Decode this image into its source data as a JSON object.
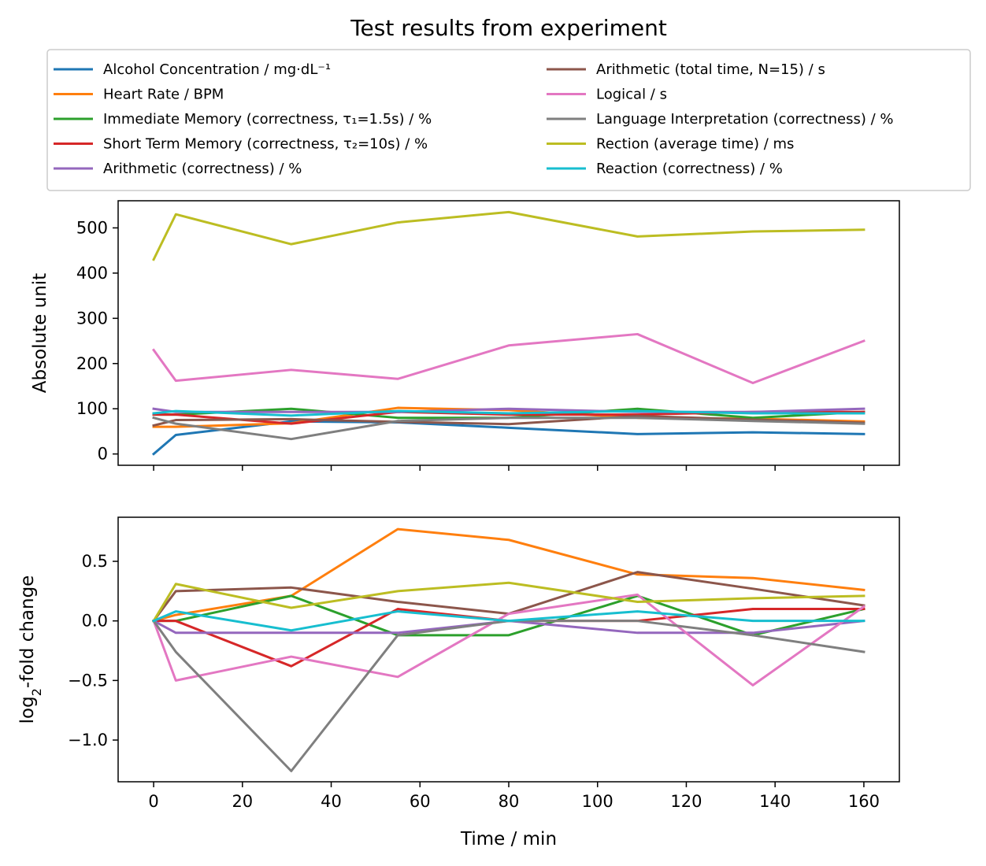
{
  "title": "Test results from experiment",
  "legend": {
    "items": [
      {
        "series": 0,
        "label": "Alcohol Concentration / mg·dL⁻¹"
      },
      {
        "series": 1,
        "label": "Heart Rate / BPM"
      },
      {
        "series": 2,
        "label": "Immediate Memory (correctness, τ₁=1.5s) / %"
      },
      {
        "series": 3,
        "label": "Short Term Memory (correctness, τ₂=10s) / %"
      },
      {
        "series": 4,
        "label": "Arithmetic (correctness) / %"
      },
      {
        "series": 5,
        "label": "Arithmetic (total time, N=15) / s"
      },
      {
        "series": 6,
        "label": "Logical / s"
      },
      {
        "series": 7,
        "label": "Language Interpretation (correctness) / %"
      },
      {
        "series": 8,
        "label": "Rection (average time) / ms"
      },
      {
        "series": 9,
        "label": "Reaction (correctness) / %"
      }
    ]
  },
  "chart_data": [
    {
      "type": "line",
      "panel": "top",
      "title": "Test results from experiment",
      "xlabel": "",
      "ylabel": "Absolute unit",
      "xlim": [
        -8,
        168
      ],
      "ylim": [
        -25,
        560
      ],
      "xticks": [
        0,
        20,
        40,
        60,
        80,
        100,
        120,
        140,
        160
      ],
      "xtick_labels_visible": false,
      "yticks": [
        0,
        100,
        200,
        300,
        400,
        500
      ],
      "ytick_labels": [
        "0",
        "100",
        "200",
        "300",
        "400",
        "500"
      ],
      "grid": false,
      "legend_position": "top",
      "x": [
        0,
        5,
        31,
        55,
        80,
        109,
        135,
        160
      ],
      "series": [
        {
          "name": "Alcohol Concentration / mg·dL⁻¹",
          "color": "#1f77b4",
          "values": [
            0,
            42,
            72,
            70,
            58,
            44,
            48,
            44
          ]
        },
        {
          "name": "Heart Rate / BPM",
          "color": "#ff7f0e",
          "values": [
            60,
            60,
            68,
            102,
            97,
            80,
            78,
            72
          ]
        },
        {
          "name": "Immediate Memory (correctness, τ₁=1.5s) / %",
          "color": "#2ca02c",
          "values": [
            87,
            87,
            100,
            80,
            80,
            100,
            80,
            93
          ]
        },
        {
          "name": "Short Term Memory (correctness, τ₂=10s) / %",
          "color": "#d62728",
          "values": [
            87,
            87,
            67,
            93,
            87,
            87,
            93,
            93
          ]
        },
        {
          "name": "Arithmetic (correctness) / %",
          "color": "#9467bd",
          "values": [
            100,
            93,
            93,
            93,
            100,
            93,
            93,
            100
          ]
        },
        {
          "name": "Arithmetic (total time, N=15) / s",
          "color": "#8c564b",
          "values": [
            63,
            75,
            77,
            71,
            66,
            84,
            76,
            69
          ]
        },
        {
          "name": "Logical / s",
          "color": "#e377c2",
          "values": [
            230,
            162,
            186,
            166,
            240,
            265,
            157,
            250
          ]
        },
        {
          "name": "Language Interpretation (correctness) / %",
          "color": "#7f7f7f",
          "values": [
            80,
            67,
            33,
            73,
            80,
            80,
            73,
            67
          ]
        },
        {
          "name": "Rection (average time) / ms",
          "color": "#bcbd22",
          "values": [
            430,
            530,
            464,
            512,
            535,
            481,
            492,
            496
          ]
        },
        {
          "name": "Reaction (correctness) / %",
          "color": "#17becf",
          "values": [
            90,
            95,
            85,
            95,
            90,
            95,
            90,
            90
          ]
        }
      ]
    },
    {
      "type": "line",
      "panel": "bottom",
      "title": "",
      "xlabel": "Time / min",
      "ylabel": "log₂-fold change",
      "xlim": [
        -8,
        168
      ],
      "ylim": [
        -1.35,
        0.87
      ],
      "xticks": [
        0,
        20,
        40,
        60,
        80,
        100,
        120,
        140,
        160
      ],
      "xtick_labels": [
        "0",
        "20",
        "40",
        "60",
        "80",
        "100",
        "120",
        "140",
        "160"
      ],
      "yticks": [
        0.5,
        0.0,
        -0.5,
        -1.0
      ],
      "ytick_labels": [
        "0.5",
        "0.0",
        "−0.5",
        "−1.0"
      ],
      "grid": false,
      "x": [
        0,
        5,
        31,
        55,
        80,
        109,
        135,
        160
      ],
      "series": [
        {
          "name": "Heart Rate / BPM",
          "color": "#ff7f0e",
          "values": [
            0,
            0.05,
            0.21,
            0.77,
            0.68,
            0.39,
            0.36,
            0.26
          ]
        },
        {
          "name": "Immediate Memory (correctness, τ₁=1.5s) / %",
          "color": "#2ca02c",
          "values": [
            0,
            0,
            0.21,
            -0.12,
            -0.12,
            0.21,
            -0.12,
            0.1
          ]
        },
        {
          "name": "Short Term Memory (correctness, τ₂=10s) / %",
          "color": "#d62728",
          "values": [
            0,
            0,
            -0.38,
            0.1,
            0,
            0,
            0.1,
            0.1
          ]
        },
        {
          "name": "Arithmetic (correctness) / %",
          "color": "#9467bd",
          "values": [
            0,
            -0.1,
            -0.1,
            -0.1,
            0,
            -0.1,
            -0.1,
            0
          ]
        },
        {
          "name": "Arithmetic (total time, N=15) / s",
          "color": "#8c564b",
          "values": [
            0,
            0.25,
            0.28,
            0.16,
            0.06,
            0.41,
            0.27,
            0.13
          ]
        },
        {
          "name": "Logical / s",
          "color": "#e377c2",
          "values": [
            0,
            -0.5,
            -0.3,
            -0.47,
            0.06,
            0.22,
            -0.54,
            0.12
          ]
        },
        {
          "name": "Language Interpretation (correctness) / %",
          "color": "#7f7f7f",
          "values": [
            0,
            -0.26,
            -1.26,
            -0.12,
            0,
            0,
            -0.12,
            -0.26
          ]
        },
        {
          "name": "Rection (average time) / ms",
          "color": "#bcbd22",
          "values": [
            0,
            0.31,
            0.11,
            0.25,
            0.32,
            0.16,
            0.19,
            0.21
          ]
        },
        {
          "name": "Reaction (correctness) / %",
          "color": "#17becf",
          "values": [
            0,
            0.08,
            -0.08,
            0.08,
            0,
            0.08,
            0,
            0
          ]
        }
      ]
    }
  ]
}
